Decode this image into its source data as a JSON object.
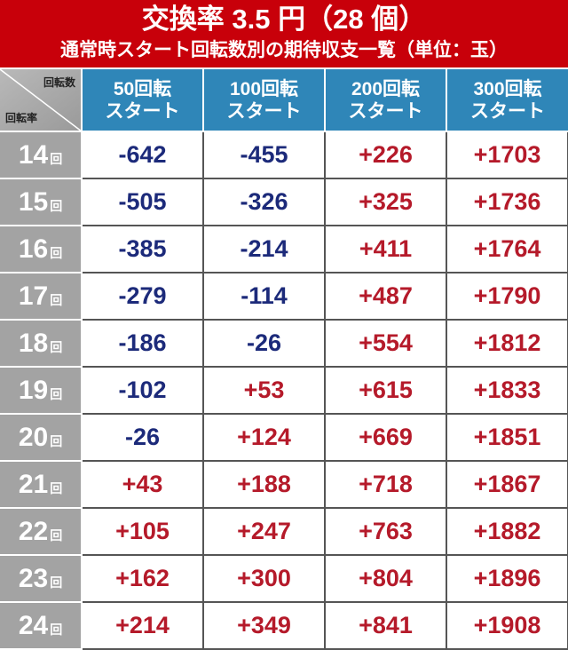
{
  "header": {
    "title": "交換率 3.5 円（28 個）",
    "subtitle": "通常時スタート回転数別の期待収支一覧（単位：玉）"
  },
  "corner": {
    "top_right": "回転数",
    "bottom_left": "回転率"
  },
  "columns": [
    {
      "line1": "50回転",
      "line2": "スタート"
    },
    {
      "line1": "100回転",
      "line2": "スタート"
    },
    {
      "line1": "200回転",
      "line2": "スタート"
    },
    {
      "line1": "300回転",
      "line2": "スタート"
    }
  ],
  "rows": [
    {
      "rate": "14",
      "unit": "回",
      "values": [
        "-642",
        "-455",
        "+226",
        "+1703"
      ]
    },
    {
      "rate": "15",
      "unit": "回",
      "values": [
        "-505",
        "-326",
        "+325",
        "+1736"
      ]
    },
    {
      "rate": "16",
      "unit": "回",
      "values": [
        "-385",
        "-214",
        "+411",
        "+1764"
      ]
    },
    {
      "rate": "17",
      "unit": "回",
      "values": [
        "-279",
        "-114",
        "+487",
        "+1790"
      ]
    },
    {
      "rate": "18",
      "unit": "回",
      "values": [
        "-186",
        "-26",
        "+554",
        "+1812"
      ]
    },
    {
      "rate": "19",
      "unit": "回",
      "values": [
        "-102",
        "+53",
        "+615",
        "+1833"
      ]
    },
    {
      "rate": "20",
      "unit": "回",
      "values": [
        "-26",
        "+124",
        "+669",
        "+1851"
      ]
    },
    {
      "rate": "21",
      "unit": "回",
      "values": [
        "+43",
        "+188",
        "+718",
        "+1867"
      ]
    },
    {
      "rate": "22",
      "unit": "回",
      "values": [
        "+105",
        "+247",
        "+763",
        "+1882"
      ]
    },
    {
      "rate": "23",
      "unit": "回",
      "values": [
        "+162",
        "+300",
        "+804",
        "+1896"
      ]
    },
    {
      "rate": "24",
      "unit": "回",
      "values": [
        "+214",
        "+349",
        "+841",
        "+1908"
      ]
    }
  ],
  "colors": {
    "header_red": "#c8000a",
    "column_blue": "#2f86b8",
    "row_gray": "#a3a3a3",
    "negative_navy": "#1c2a7a",
    "positive_red": "#b51a2a"
  }
}
